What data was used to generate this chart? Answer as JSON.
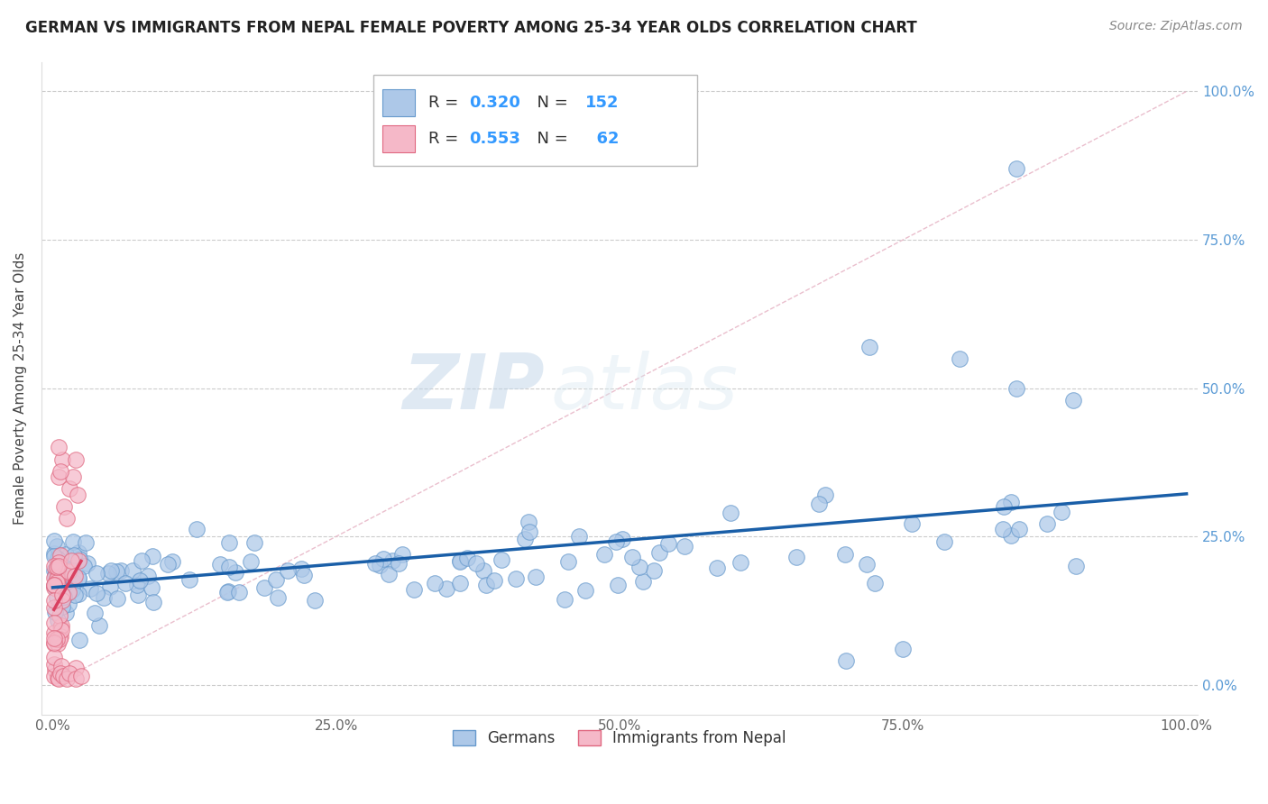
{
  "title": "GERMAN VS IMMIGRANTS FROM NEPAL FEMALE POVERTY AMONG 25-34 YEAR OLDS CORRELATION CHART",
  "source": "Source: ZipAtlas.com",
  "ylabel": "Female Poverty Among 25-34 Year Olds",
  "xlim": [
    0,
    1
  ],
  "ylim": [
    -0.02,
    1.02
  ],
  "german_color": "#adc8e8",
  "german_edge_color": "#6699cc",
  "nepal_color": "#f5b8c8",
  "nepal_edge_color": "#e06880",
  "trend_german_color": "#1a5fa8",
  "trend_nepal_color": "#d94060",
  "diagonal_color": "#e8b8c8",
  "R_german": 0.32,
  "N_german": 152,
  "R_nepal": 0.553,
  "N_nepal": 62,
  "legend_label_german": "Germans",
  "legend_label_nepal": "Immigrants from Nepal",
  "watermark_zip": "ZIP",
  "watermark_atlas": "atlas",
  "background_color": "#ffffff",
  "grid_color": "#cccccc",
  "seed": 42
}
